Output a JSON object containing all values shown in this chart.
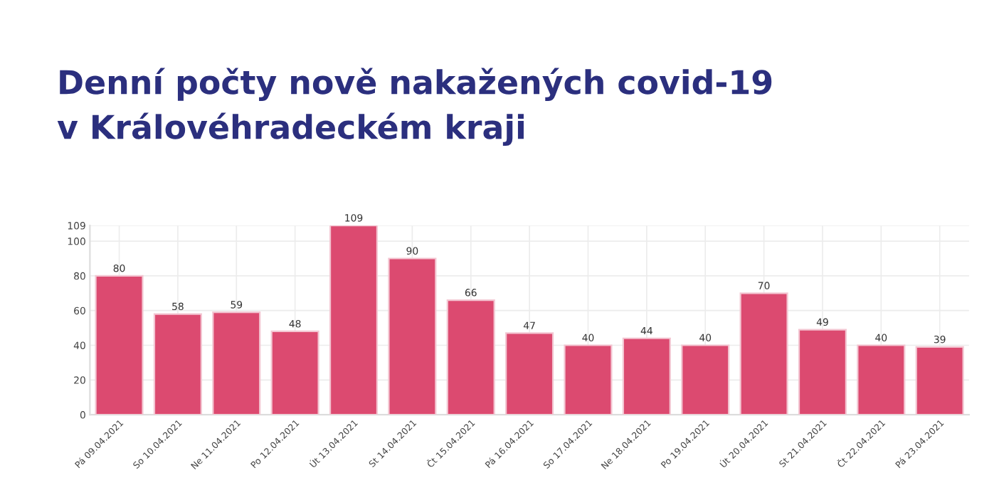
{
  "chart_data": {
    "type": "bar",
    "title": "Denní počty nově nakažených covid-19\nv Královéhradeckém kraji",
    "categories": [
      "Pá 09.04.2021",
      "So 10.04.2021",
      "Ne 11.04.2021",
      "Po 12.04.2021",
      "Út 13.04.2021",
      "St 14.04.2021",
      "Čt 15.04.2021",
      "Pá 16.04.2021",
      "So 17.04.2021",
      "Ne 18.04.2021",
      "Po 19.04.2021",
      "Út 20.04.2021",
      "St 21.04.2021",
      "Čt 22.04.2021",
      "Pá 23.04.2021"
    ],
    "values": [
      80,
      58,
      59,
      48,
      109,
      90,
      66,
      47,
      40,
      44,
      40,
      70,
      49,
      40,
      39
    ],
    "color": "#dc4a70",
    "ylim": [
      0,
      109
    ],
    "yticks": [
      0,
      20,
      40,
      60,
      80,
      100,
      109
    ],
    "grid": true,
    "data_labels": true
  }
}
